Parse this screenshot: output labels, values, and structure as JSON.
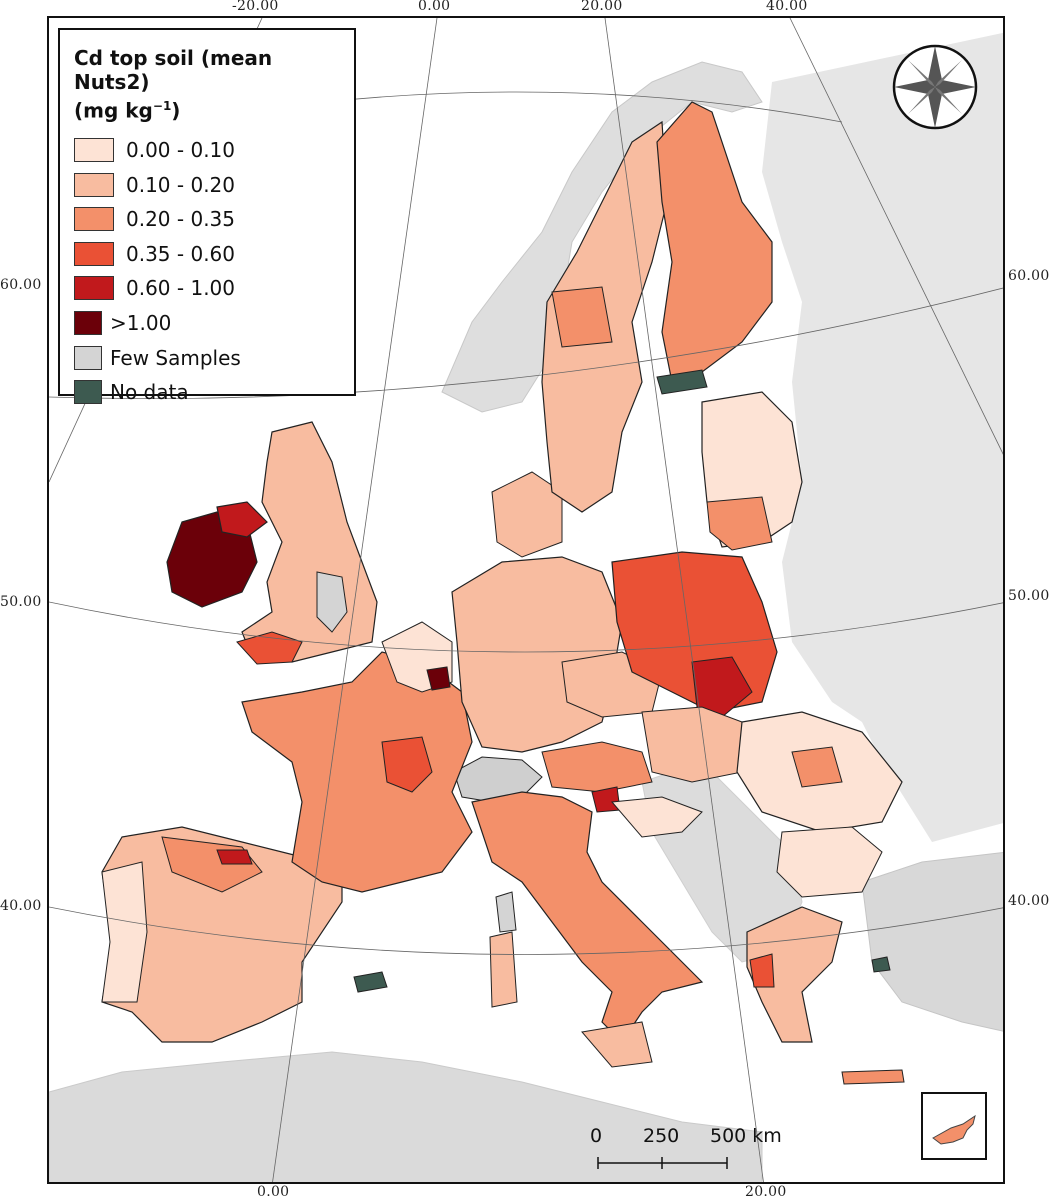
{
  "map": {
    "legend": {
      "title": "Cd top soil (mean Nuts2)",
      "unit_prefix": "(mg kg",
      "unit_superscript": "−1",
      "unit_suffix": ")",
      "classes": [
        {
          "label": "0.00 - 0.10",
          "color": "#fde3d5"
        },
        {
          "label": "0.10 - 0.20",
          "color": "#f8bca0"
        },
        {
          "label": "0.20 - 0.35",
          "color": "#f3906a"
        },
        {
          "label": "0.35 - 0.60",
          "color": "#ea5135"
        },
        {
          "label": "0.60 - 1.00",
          "color": "#c1191c"
        },
        {
          "label": ">1.00",
          "color": "#6b0009"
        },
        {
          "label": "Few Samples",
          "color": "#d4d4d4"
        },
        {
          "label": "No data",
          "color": "#3d5a50"
        }
      ]
    },
    "graticule": {
      "top_labels": [
        "-20.00",
        "0.00",
        "20.00",
        "40.00"
      ],
      "bottom_labels": [
        "0.00",
        "20.00"
      ],
      "left_labels": [
        "60.00",
        "50.00",
        "40.00"
      ],
      "right_labels": [
        "60.00",
        "50.00",
        "40.00"
      ]
    },
    "scale_bar": {
      "labels": [
        "0",
        "250",
        "500 km"
      ]
    },
    "compass": "north-arrow-compass-rose-icon",
    "inset": "cyprus-inset"
  }
}
